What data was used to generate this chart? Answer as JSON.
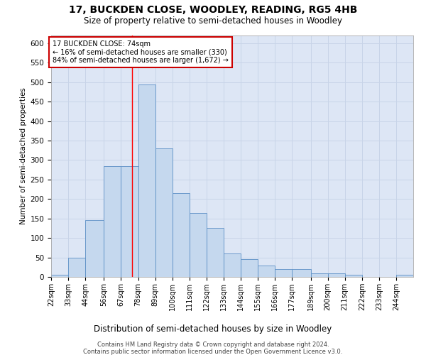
{
  "title": "17, BUCKDEN CLOSE, WOODLEY, READING, RG5 4HB",
  "subtitle": "Size of property relative to semi-detached houses in Woodley",
  "xlabel_bottom": "Distribution of semi-detached houses by size in Woodley",
  "ylabel": "Number of semi-detached properties",
  "footer_line1": "Contains HM Land Registry data © Crown copyright and database right 2024.",
  "footer_line2": "Contains public sector information licensed under the Open Government Licence v3.0.",
  "property_size": 74,
  "property_label": "17 BUCKDEN CLOSE: 74sqm",
  "pct_smaller": 16,
  "count_smaller": 330,
  "pct_larger": 84,
  "count_larger": 1672,
  "bin_labels": [
    "22sqm",
    "33sqm",
    "44sqm",
    "56sqm",
    "67sqm",
    "78sqm",
    "89sqm",
    "100sqm",
    "111sqm",
    "122sqm",
    "133sqm",
    "144sqm",
    "155sqm",
    "166sqm",
    "177sqm",
    "189sqm",
    "200sqm",
    "211sqm",
    "222sqm",
    "233sqm",
    "244sqm"
  ],
  "bin_left_edges": [
    22,
    33,
    44,
    56,
    67,
    78,
    89,
    100,
    111,
    122,
    133,
    144,
    155,
    166,
    177,
    189,
    200,
    211,
    222,
    233,
    244
  ],
  "bin_widths": [
    11,
    11,
    12,
    11,
    11,
    11,
    11,
    11,
    11,
    11,
    11,
    11,
    11,
    11,
    12,
    11,
    11,
    11,
    11,
    11,
    11
  ],
  "bar_heights": [
    5,
    50,
    145,
    285,
    285,
    495,
    330,
    215,
    165,
    125,
    60,
    45,
    30,
    20,
    20,
    10,
    10,
    5,
    0,
    0,
    5
  ],
  "bar_color": "#c5d8ee",
  "bar_edge_color": "#5b8fc5",
  "grid_color": "#c8d4e8",
  "red_line_x": 74,
  "ylim": [
    0,
    620
  ],
  "yticks": [
    0,
    50,
    100,
    150,
    200,
    250,
    300,
    350,
    400,
    450,
    500,
    550,
    600
  ],
  "annotation_box_color": "#ffffff",
  "annotation_box_edge": "#cc0000",
  "bg_color": "#e8eef8",
  "plot_bg_color": "#dde6f5"
}
